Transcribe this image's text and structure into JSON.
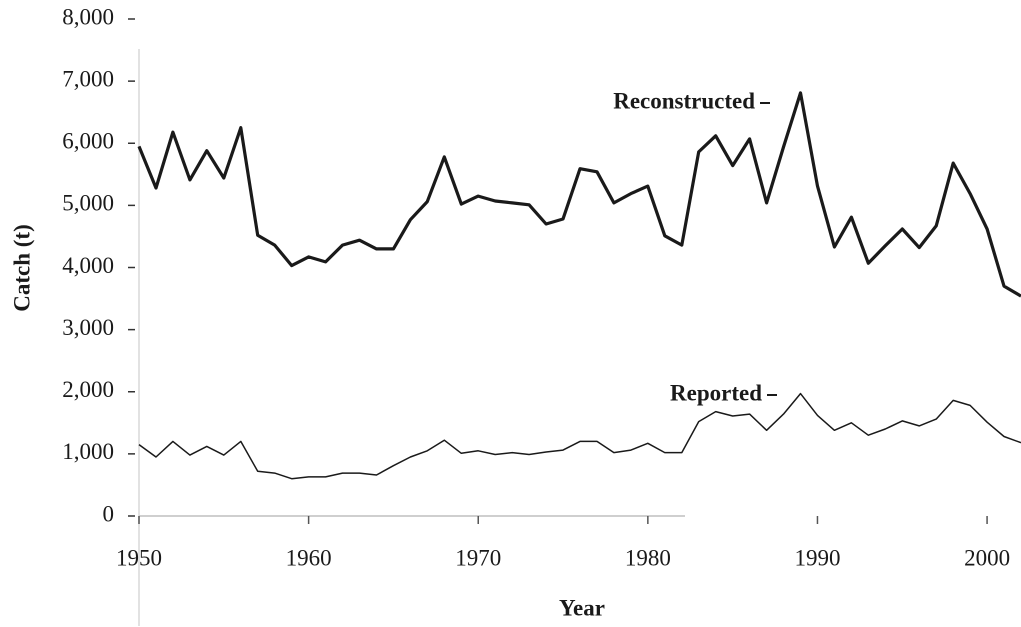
{
  "chart_data": {
    "type": "line",
    "xlabel": "Year",
    "ylabel": "Catch (t)",
    "x": [
      1950,
      1951,
      1952,
      1953,
      1954,
      1955,
      1956,
      1957,
      1958,
      1959,
      1960,
      1961,
      1962,
      1963,
      1964,
      1965,
      1966,
      1967,
      1968,
      1969,
      1970,
      1971,
      1972,
      1973,
      1974,
      1975,
      1976,
      1977,
      1978,
      1979,
      1980,
      1981,
      1982,
      1983,
      1984,
      1985,
      1986,
      1987,
      1988,
      1989,
      1990,
      1991,
      1992,
      1993,
      1994,
      1995,
      1996,
      1997,
      1998,
      1999,
      2000,
      2001,
      2002
    ],
    "series": [
      {
        "name": "Reconstructed",
        "color": "#1a1a1a",
        "values": [
          5950,
          5280,
          6180,
          5410,
          5880,
          5440,
          6250,
          4520,
          4360,
          4030,
          4170,
          4090,
          4360,
          4440,
          4300,
          4300,
          4770,
          5060,
          5780,
          5020,
          5150,
          5070,
          5040,
          5010,
          4700,
          4780,
          5590,
          5540,
          5040,
          5190,
          5310,
          4510,
          4360,
          5860,
          6120,
          5640,
          6070,
          5040,
          5940,
          6810,
          5310,
          4330,
          4810,
          4070,
          4350,
          4620,
          4320,
          4670,
          5680,
          5190,
          4620,
          3700,
          3540
        ]
      },
      {
        "name": "Reported",
        "color": "#1a1a1a",
        "values": [
          1150,
          950,
          1200,
          980,
          1120,
          980,
          1200,
          720,
          690,
          600,
          630,
          630,
          690,
          690,
          660,
          810,
          950,
          1050,
          1220,
          1010,
          1050,
          990,
          1020,
          990,
          1030,
          1060,
          1200,
          1200,
          1020,
          1060,
          1170,
          1020,
          1020,
          1520,
          1680,
          1610,
          1640,
          1380,
          1640,
          1970,
          1620,
          1380,
          1500,
          1300,
          1400,
          1530,
          1450,
          1560,
          1860,
          1780,
          1510,
          1280,
          1180
        ]
      }
    ],
    "xlim": [
      1950,
      2002
    ],
    "xticks": [
      1950,
      1960,
      1970,
      1980,
      1990,
      2000
    ],
    "ylim": [
      0,
      8000
    ],
    "yticks": [
      0,
      {
        "value": 1000,
        "label": "1,000"
      },
      {
        "value": 2000,
        "label": "2,000"
      },
      {
        "value": 3000,
        "label": "3,000"
      },
      {
        "value": 4000,
        "label": "4,000"
      },
      {
        "value": 5000,
        "label": "5,000"
      },
      {
        "value": 6000,
        "label": "6,000"
      },
      {
        "value": 7000,
        "label": "7,000"
      },
      {
        "value": 8000,
        "label": "8,000"
      }
    ],
    "grid": false
  }
}
